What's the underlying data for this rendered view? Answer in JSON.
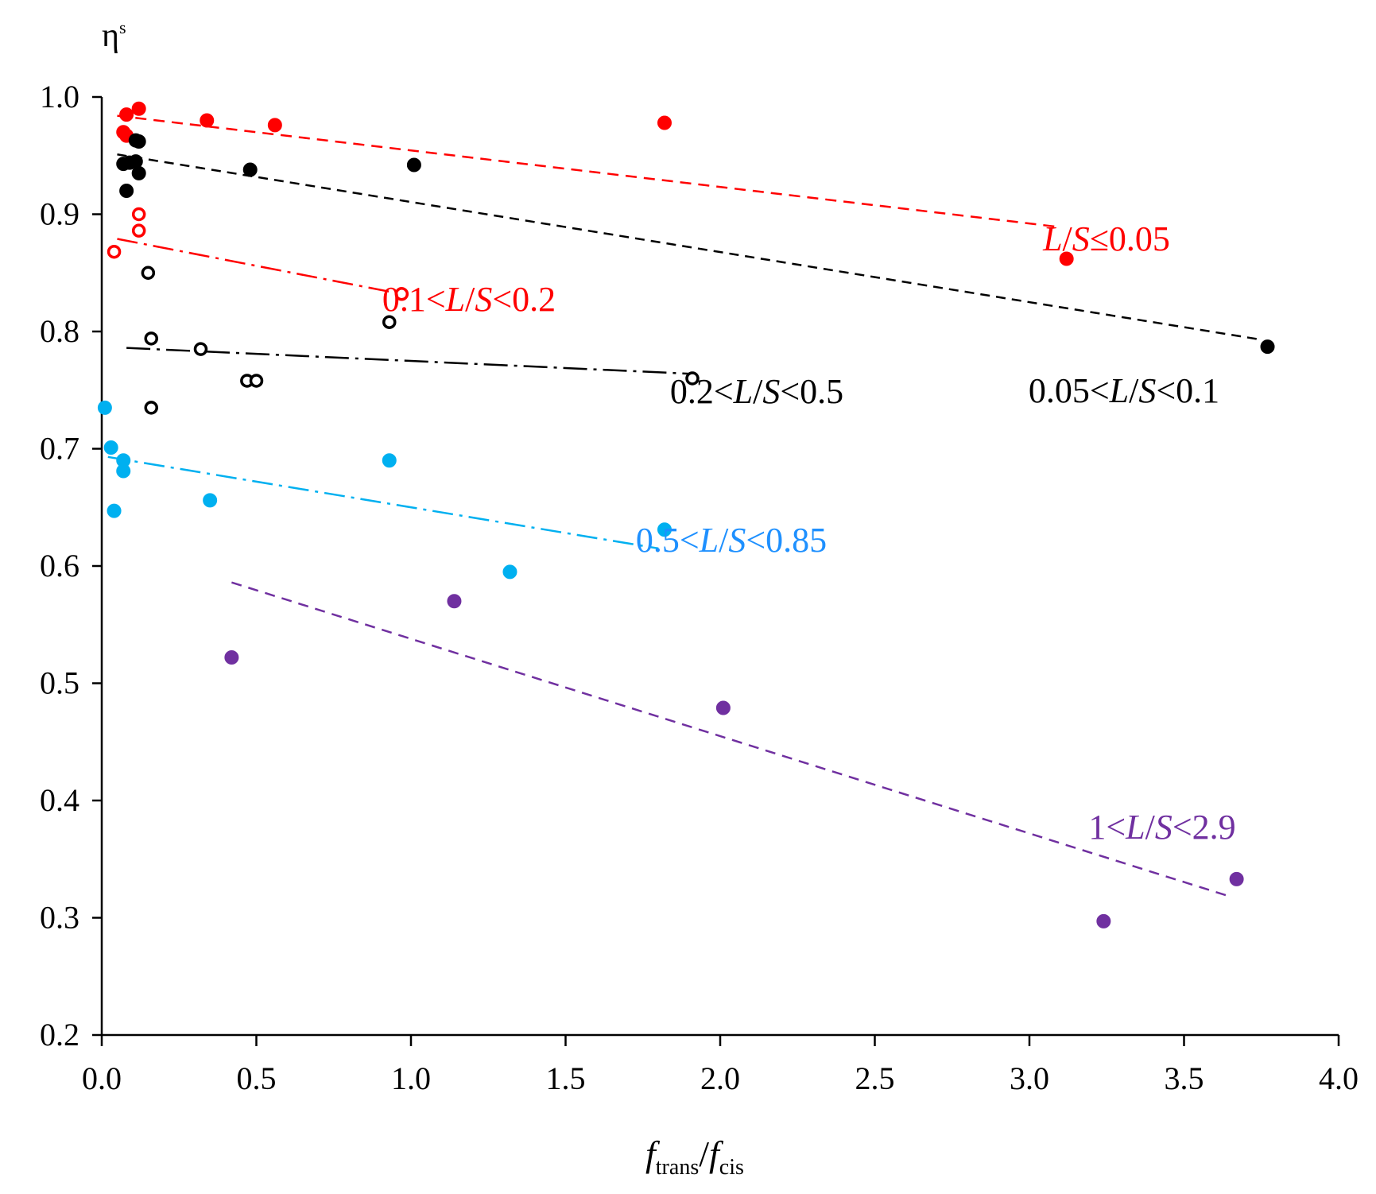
{
  "chart_data": {
    "type": "scatter",
    "title": "",
    "ylabel": "η",
    "ylabel_superscript": "s",
    "xlabel_parts": [
      "f",
      "trans",
      "/",
      "f",
      "cis"
    ],
    "xlim": [
      0.0,
      4.0
    ],
    "ylim": [
      0.2,
      1.0
    ],
    "x_ticks": [
      "0.0",
      "0.5",
      "1.0",
      "1.5",
      "2.0",
      "2.5",
      "3.0",
      "3.5",
      "4.0"
    ],
    "y_ticks": [
      "0.2",
      "0.3",
      "0.4",
      "0.5",
      "0.6",
      "0.7",
      "0.8",
      "0.9",
      "1.0"
    ],
    "colors": {
      "red": "#ff0000",
      "black": "#000000",
      "cyan": "#00b0f0",
      "purple": "#7030a0",
      "cyan_text": "#1e90ff"
    },
    "series": [
      {
        "name": "L/S≤0.05",
        "label_parts": [
          "",
          "L",
          "/",
          "S",
          "≤0.05"
        ],
        "color": "#ff0000",
        "label_color": "#ff0000",
        "marker": "filled",
        "points": [
          [
            0.08,
            0.985
          ],
          [
            0.12,
            0.99
          ],
          [
            0.34,
            0.98
          ],
          [
            0.56,
            0.976
          ],
          [
            1.82,
            0.978
          ],
          [
            0.07,
            0.97
          ],
          [
            0.08,
            0.967
          ],
          [
            3.12,
            0.862
          ]
        ],
        "trend": {
          "x": [
            0.05,
            3.1
          ],
          "y": [
            0.984,
            0.889
          ],
          "dash": "14,9"
        }
      },
      {
        "name": "0.05<L/S<0.1",
        "label_parts": [
          "0.05<",
          "L",
          "/",
          "S",
          "<0.1"
        ],
        "color": "#000000",
        "label_color": "#000000",
        "marker": "filled",
        "points": [
          [
            0.11,
            0.963
          ],
          [
            0.12,
            0.962
          ],
          [
            0.07,
            0.943
          ],
          [
            0.09,
            0.944
          ],
          [
            0.11,
            0.945
          ],
          [
            0.12,
            0.935
          ],
          [
            0.08,
            0.92
          ],
          [
            0.48,
            0.938
          ],
          [
            1.01,
            0.942
          ],
          [
            3.77,
            0.787
          ]
        ],
        "trend": {
          "x": [
            0.05,
            3.75
          ],
          "y": [
            0.951,
            0.793
          ],
          "dash": "12,8"
        }
      },
      {
        "name": "0.1<L/S<0.2",
        "label_parts": [
          "0.1<",
          "L",
          "/",
          "S",
          "<0.2"
        ],
        "color": "#ff0000",
        "label_color": "#ff0000",
        "marker": "open",
        "points": [
          [
            0.12,
            0.9
          ],
          [
            0.12,
            0.886
          ],
          [
            0.04,
            0.868
          ],
          [
            0.97,
            0.832
          ]
        ],
        "trend": {
          "x": [
            0.05,
            0.95
          ],
          "y": [
            0.879,
            0.833
          ],
          "dash": "26,8,4,8"
        }
      },
      {
        "name": "0.2<L/S<0.5",
        "label_parts": [
          "0.2<",
          "L",
          "/",
          "S",
          "<0.5"
        ],
        "color": "#000000",
        "label_color": "#000000",
        "marker": "open",
        "points": [
          [
            0.15,
            0.85
          ],
          [
            0.16,
            0.794
          ],
          [
            0.32,
            0.785
          ],
          [
            0.93,
            0.808
          ],
          [
            0.47,
            0.758
          ],
          [
            0.5,
            0.758
          ],
          [
            0.16,
            0.735
          ],
          [
            1.91,
            0.76
          ]
        ],
        "trend": {
          "x": [
            0.08,
            1.9
          ],
          "y": [
            0.786,
            0.764
          ],
          "dash": "30,8,4,8"
        }
      },
      {
        "name": "0.5<L/S<0.85",
        "label_parts": [
          "0.5<",
          "L",
          "/",
          "S",
          "<0.85"
        ],
        "color": "#00b0f0",
        "label_color": "#1e90ff",
        "marker": "filled",
        "points": [
          [
            0.01,
            0.735
          ],
          [
            0.03,
            0.701
          ],
          [
            0.07,
            0.69
          ],
          [
            0.07,
            0.681
          ],
          [
            0.04,
            0.647
          ],
          [
            0.35,
            0.656
          ],
          [
            0.93,
            0.69
          ],
          [
            1.82,
            0.631
          ],
          [
            1.32,
            0.595
          ]
        ],
        "trend": {
          "x": [
            0.02,
            1.8
          ],
          "y": [
            0.693,
            0.615
          ],
          "dash": "26,8,4,8"
        }
      },
      {
        "name": "1<L/S<2.9",
        "label_parts": [
          "1<",
          "L",
          "/",
          "S",
          "<2.9"
        ],
        "color": "#7030a0",
        "label_color": "#7030a0",
        "marker": "filled",
        "points": [
          [
            0.42,
            0.522
          ],
          [
            1.14,
            0.57
          ],
          [
            2.01,
            0.479
          ],
          [
            3.24,
            0.297
          ],
          [
            3.67,
            0.333
          ]
        ],
        "trend": {
          "x": [
            0.42,
            3.65
          ],
          "y": [
            0.586,
            0.318
          ],
          "dash": "13,9"
        }
      }
    ]
  }
}
